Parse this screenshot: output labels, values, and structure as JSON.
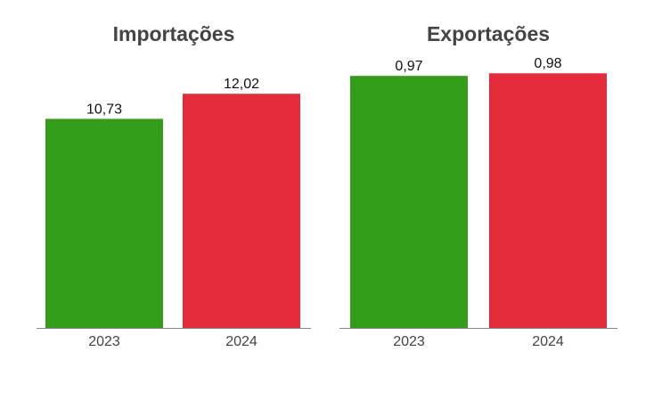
{
  "chart_data": [
    {
      "type": "bar",
      "title": "Importações",
      "categories": [
        "2023",
        "2024"
      ],
      "values": [
        10.73,
        12.02
      ],
      "value_labels": [
        "10,73",
        "12,02"
      ],
      "colors": [
        "#339c19",
        "#e52c3d"
      ],
      "xlabel": "",
      "ylabel": "",
      "ylim": [
        0,
        14.27
      ],
      "grid": false,
      "legend": "none"
    },
    {
      "type": "bar",
      "title": "Exportações",
      "categories": [
        "2023",
        "2024"
      ],
      "values": [
        0.97,
        0.98
      ],
      "value_labels": [
        "0,97",
        "0,98"
      ],
      "colors": [
        "#339c19",
        "#e52c3d"
      ],
      "xlabel": "",
      "ylabel": "",
      "ylim": [
        0,
        1.07
      ],
      "grid": false,
      "legend": "none"
    }
  ]
}
